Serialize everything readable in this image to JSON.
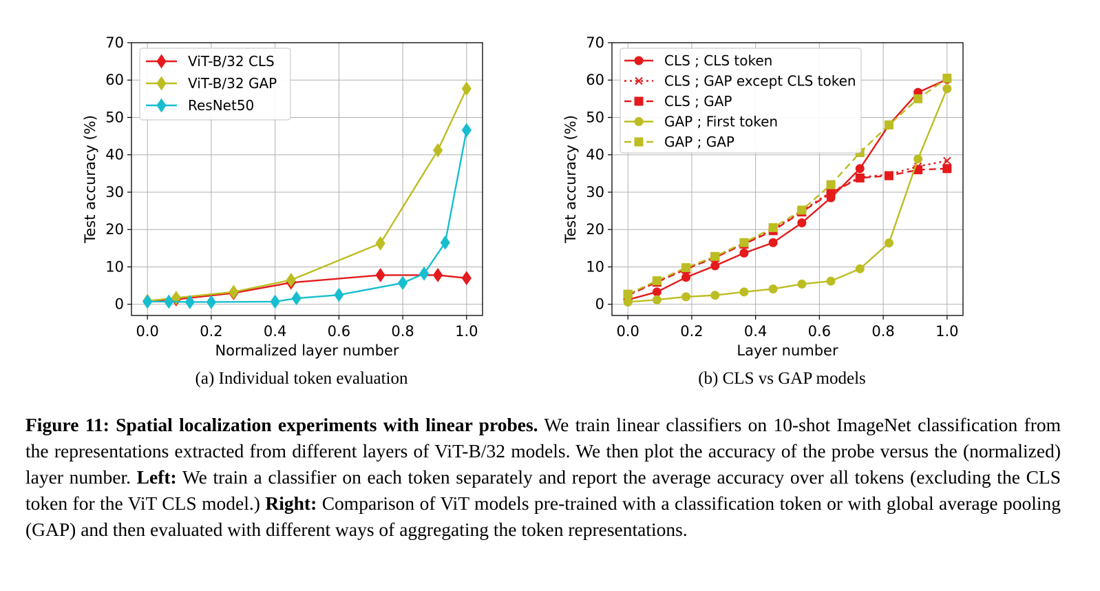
{
  "chart_data": [
    {
      "type": "line",
      "subcaption": "(a) Individual token evaluation",
      "xlabel": "Normalized layer number",
      "ylabel": "Test accuracy (%)",
      "xlim": [
        -0.05,
        1.05
      ],
      "ylim": [
        -3,
        70
      ],
      "xticks": [
        0.0,
        0.2,
        0.4,
        0.6,
        0.8,
        1.0
      ],
      "xtick_labels": [
        "0.0",
        "0.2",
        "0.4",
        "0.6",
        "0.8",
        "1.0"
      ],
      "yticks": [
        0,
        10,
        20,
        30,
        40,
        50,
        60,
        70
      ],
      "ytick_labels": [
        "0",
        "10",
        "20",
        "30",
        "40",
        "50",
        "60",
        "70"
      ],
      "grid": true,
      "legend_position": "top-left",
      "series": [
        {
          "name": "ViT-B/32 CLS",
          "color": "#e41a1c",
          "marker": "diamond",
          "dash": "solid",
          "x": [
            0.0,
            0.09,
            0.27,
            0.45,
            0.73,
            0.91,
            1.0
          ],
          "y": [
            0.8,
            1.3,
            3.0,
            5.8,
            7.8,
            7.8,
            7.0
          ]
        },
        {
          "name": "ViT-B/32 GAP",
          "color": "#bcbd22",
          "marker": "diamond",
          "dash": "solid",
          "x": [
            0.0,
            0.09,
            0.27,
            0.45,
            0.73,
            0.91,
            1.0
          ],
          "y": [
            0.9,
            1.7,
            3.3,
            6.5,
            16.3,
            41.2,
            57.7
          ]
        },
        {
          "name": "ResNet50",
          "color": "#17becf",
          "marker": "diamond",
          "dash": "solid",
          "x": [
            0.0,
            0.067,
            0.133,
            0.2,
            0.4,
            0.467,
            0.6,
            0.8,
            0.867,
            0.933,
            1.0
          ],
          "y": [
            0.7,
            0.7,
            0.6,
            0.6,
            0.7,
            1.6,
            2.5,
            5.7,
            8.2,
            16.5,
            46.6
          ]
        }
      ]
    },
    {
      "type": "line",
      "subcaption": "(b) CLS vs GAP models",
      "xlabel": "Layer number",
      "ylabel": "Test accuracy (%)",
      "xlim": [
        -0.05,
        1.05
      ],
      "ylim": [
        -3,
        70
      ],
      "xticks": [
        0.0,
        0.2,
        0.4,
        0.6,
        0.8,
        1.0
      ],
      "xtick_labels": [
        "0.0",
        "0.2",
        "0.4",
        "0.6",
        "0.8",
        "1.0"
      ],
      "yticks": [
        0,
        10,
        20,
        30,
        40,
        50,
        60,
        70
      ],
      "ytick_labels": [
        "0",
        "10",
        "20",
        "30",
        "40",
        "50",
        "60",
        "70"
      ],
      "grid": true,
      "legend_position": "top-left",
      "series": [
        {
          "name": "CLS ; CLS token",
          "color": "#e41a1c",
          "marker": "circle",
          "dash": "solid",
          "x": [
            0.0,
            0.091,
            0.182,
            0.273,
            0.364,
            0.455,
            0.545,
            0.636,
            0.727,
            0.818,
            0.909,
            1.0
          ],
          "y": [
            1.2,
            3.3,
            7.2,
            10.3,
            13.7,
            16.5,
            21.8,
            28.5,
            36.3,
            48.0,
            56.7,
            60.2
          ]
        },
        {
          "name": "CLS ; GAP except CLS token",
          "color": "#e41a1c",
          "marker": "x",
          "dash": "dotted",
          "x": [
            0.0,
            0.091,
            0.182,
            0.273,
            0.364,
            0.455,
            0.545,
            0.636,
            0.727,
            0.818,
            0.909,
            1.0
          ],
          "y": [
            2.6,
            6.1,
            9.6,
            12.7,
            16.3,
            20.0,
            25.0,
            30.0,
            34.0,
            34.7,
            36.9,
            38.4
          ]
        },
        {
          "name": "CLS ; GAP",
          "color": "#e41a1c",
          "marker": "square",
          "dash": "dashed",
          "x": [
            0.0,
            0.091,
            0.182,
            0.273,
            0.364,
            0.455,
            0.545,
            0.636,
            0.727,
            0.818,
            0.909,
            1.0
          ],
          "y": [
            2.4,
            5.9,
            9.4,
            12.5,
            16.1,
            19.7,
            24.7,
            29.8,
            33.8,
            34.4,
            36.0,
            36.3
          ]
        },
        {
          "name": "GAP ; First token",
          "color": "#bcbd22",
          "marker": "circle",
          "dash": "solid",
          "x": [
            0.0,
            0.091,
            0.182,
            0.273,
            0.364,
            0.455,
            0.545,
            0.636,
            0.727,
            0.818,
            0.909,
            1.0
          ],
          "y": [
            0.6,
            1.2,
            2.0,
            2.4,
            3.3,
            4.1,
            5.4,
            6.2,
            9.5,
            16.4,
            38.9,
            57.7
          ]
        },
        {
          "name": "GAP ; GAP",
          "color": "#bcbd22",
          "marker": "square",
          "dash": "dashed",
          "x": [
            0.0,
            0.091,
            0.182,
            0.273,
            0.364,
            0.455,
            0.545,
            0.636,
            0.727,
            0.818,
            0.909,
            1.0
          ],
          "y": [
            2.7,
            6.3,
            9.8,
            12.8,
            16.5,
            20.5,
            25.2,
            32.0,
            40.6,
            48.0,
            55.0,
            60.5
          ]
        }
      ]
    }
  ],
  "caption": {
    "label": "Figure 11:",
    "bold_title": "Spatial localization experiments with linear probes.",
    "part1": "We train linear classifiers on 10-shot ImageNet classification from the representations extracted from different layers of ViT-B/32 models. We then plot the accuracy of the probe versus the (normalized) layer number.",
    "left_label": "Left:",
    "part2": "We train a classifier on each token separately and report the average accuracy over all tokens (excluding the CLS token for the ViT CLS model.)",
    "right_label": "Right:",
    "part3": "Comparison of ViT models pre-trained with a classification token or with global average pooling (GAP) and then evaluated with different ways of aggregating the token representations."
  }
}
